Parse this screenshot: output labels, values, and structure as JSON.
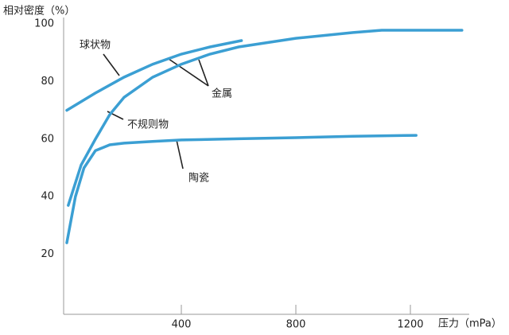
{
  "chart_data": {
    "type": "line",
    "y_label": "相对密度（%）",
    "x_label": "压力（mPa）",
    "xlim": [
      0,
      1400
    ],
    "ylim": [
      0,
      100
    ],
    "xticks": [
      400,
      800,
      1200
    ],
    "yticks": [
      20,
      40,
      60,
      80,
      100
    ],
    "grid": false,
    "series": [
      {
        "name": "球状物",
        "color": "#3b9fd3",
        "x": [
          0,
          100,
          200,
          300,
          400,
          500,
          610
        ],
        "values": [
          70,
          76,
          81.5,
          86,
          89.5,
          92,
          94.2
        ]
      },
      {
        "name": "不规则物",
        "color": "#3b9fd3",
        "x": [
          5,
          50,
          100,
          150,
          200,
          300,
          400,
          500,
          600,
          800,
          1000,
          1100,
          1380
        ],
        "values": [
          37,
          51,
          60,
          68.5,
          74.5,
          81.5,
          86,
          89.5,
          92,
          95,
          97,
          97.8,
          97.8
        ]
      },
      {
        "name": "陶瓷",
        "color": "#3b9fd3",
        "x": [
          0,
          30,
          60,
          100,
          150,
          200,
          300,
          400,
          600,
          800,
          1000,
          1220
        ],
        "values": [
          24,
          40,
          50,
          56,
          58,
          58.6,
          59.2,
          59.7,
          60.1,
          60.5,
          61,
          61.3
        ]
      }
    ],
    "annotations": [
      "金属"
    ]
  }
}
